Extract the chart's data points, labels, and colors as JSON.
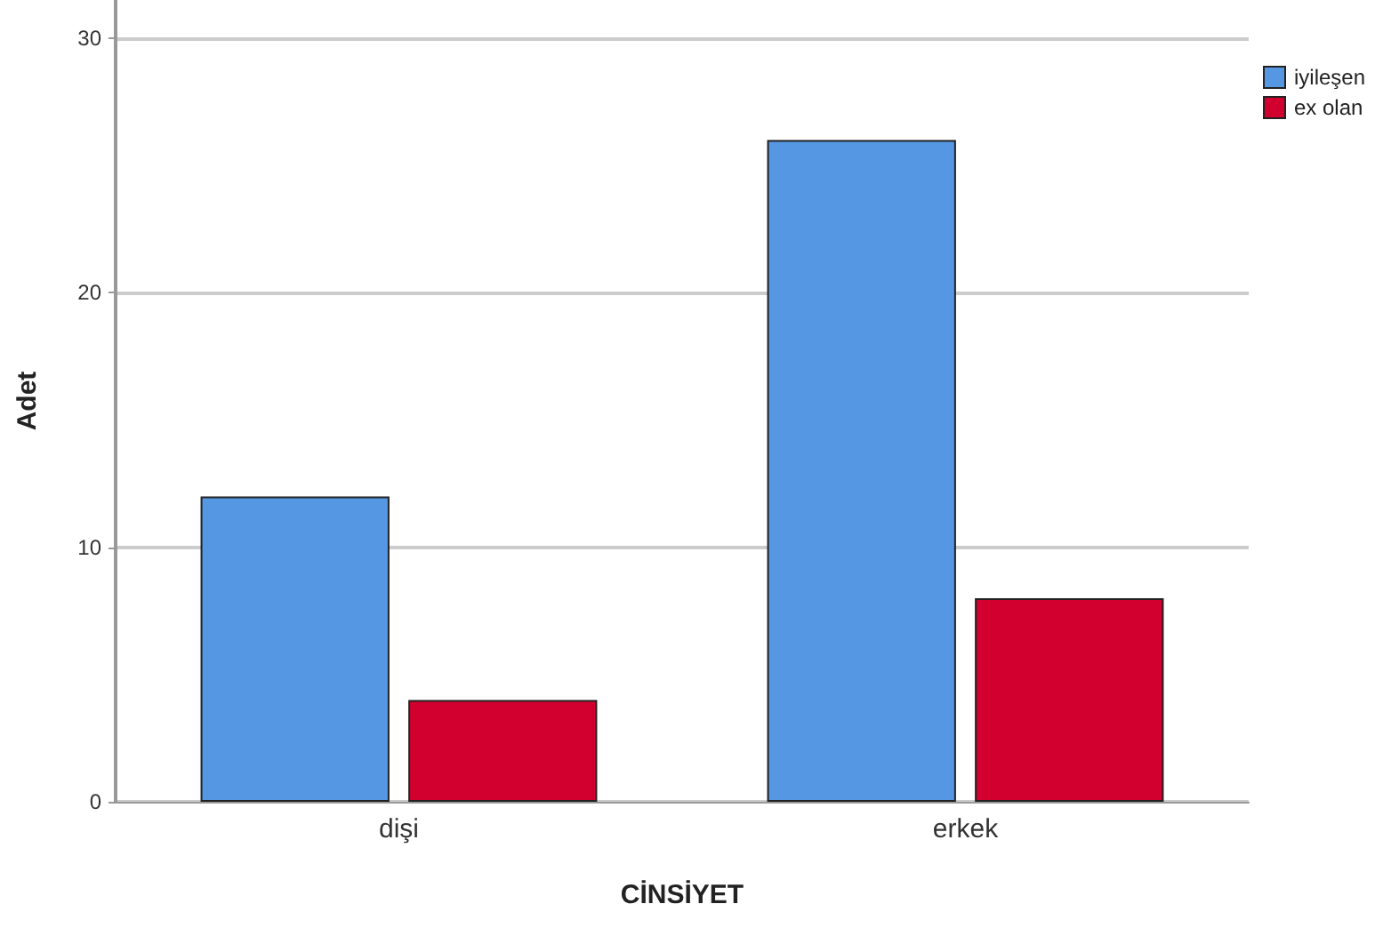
{
  "chart_data": {
    "type": "bar",
    "xlabel": "CİNSİYET",
    "ylabel": "Adet",
    "categories": [
      "dişi",
      "erkek"
    ],
    "series": [
      {
        "name": "iyileşen",
        "color": "#5597e3",
        "values": [
          12,
          26
        ]
      },
      {
        "name": "ex olan",
        "color": "#d2002e",
        "values": [
          4,
          8
        ]
      }
    ],
    "ylim": [
      0,
      31.5
    ],
    "yticks": [
      0,
      10,
      20,
      30
    ],
    "grid": "y",
    "legend": "top right"
  }
}
